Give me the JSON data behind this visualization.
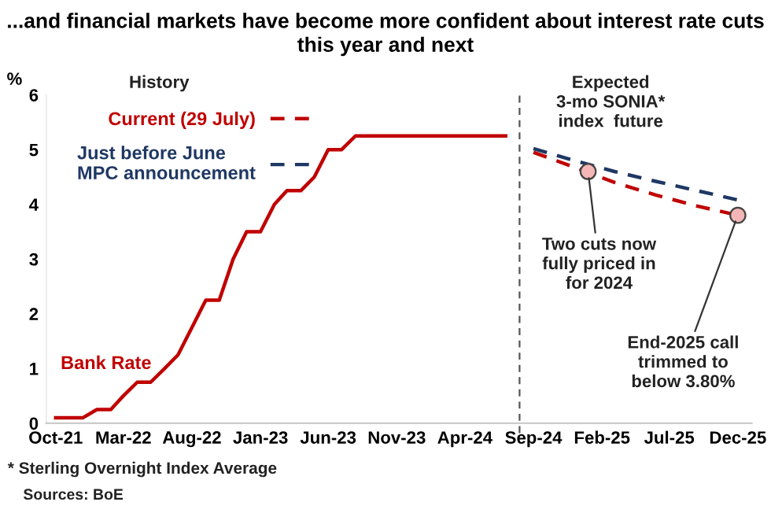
{
  "chart_data": {
    "type": "line",
    "title": "...and financial markets have become more confident about interest rate cuts this year and next",
    "ylabel": "%",
    "series": [
      {
        "name": "Bank Rate",
        "color": "#c00000",
        "line_style": "solid",
        "x": [
          "2021-10",
          "2021-11",
          "2021-12",
          "2022-01",
          "2022-02",
          "2022-03",
          "2022-04",
          "2022-05",
          "2022-06",
          "2022-07",
          "2022-08",
          "2022-09",
          "2022-10",
          "2022-11",
          "2022-12",
          "2023-01",
          "2023-02",
          "2023-03",
          "2023-04",
          "2023-05",
          "2023-06",
          "2023-07",
          "2023-08",
          "2024-07"
        ],
        "values": [
          0.1,
          0.1,
          0.1,
          0.25,
          0.25,
          0.5,
          0.75,
          0.75,
          1.0,
          1.25,
          1.75,
          2.25,
          2.25,
          3.0,
          3.5,
          3.5,
          4.0,
          4.25,
          4.25,
          4.5,
          5.0,
          5.0,
          5.25,
          5.25
        ]
      },
      {
        "name": "Current (29 July)",
        "color": "#c00000",
        "line_style": "dashed",
        "x": [
          "2024-09",
          "2024-12",
          "2025-03",
          "2025-06",
          "2025-09",
          "2025-12"
        ],
        "values": [
          4.95,
          4.68,
          4.4,
          4.17,
          3.97,
          3.8
        ]
      },
      {
        "name": "Just before June MPC announcement",
        "color": "#1f3864",
        "line_style": "dashed",
        "x": [
          "2024-09",
          "2024-12",
          "2025-03",
          "2025-06",
          "2025-09",
          "2025-12"
        ],
        "values": [
          5.02,
          4.8,
          4.6,
          4.42,
          4.25,
          4.08
        ]
      }
    ],
    "xlim": [
      "2021-09-10",
      "2026-01-01"
    ],
    "xticks": [
      {
        "value": "2021-10",
        "label": "Oct-21"
      },
      {
        "value": "2022-03",
        "label": "Mar-22"
      },
      {
        "value": "2022-08",
        "label": "Aug-22"
      },
      {
        "value": "2023-01",
        "label": "Jan-23"
      },
      {
        "value": "2023-06",
        "label": "Jun-23"
      },
      {
        "value": "2023-11",
        "label": "Nov-23"
      },
      {
        "value": "2024-04",
        "label": "Apr-24"
      },
      {
        "value": "2024-09",
        "label": "Sep-24"
      },
      {
        "value": "2025-02",
        "label": "Feb-25"
      },
      {
        "value": "2025-07",
        "label": "Jul-25"
      },
      {
        "value": "2025-12",
        "label": "Dec-25"
      }
    ],
    "ylim": [
      0,
      6
    ],
    "yticks": [
      0,
      1,
      2,
      3,
      4,
      5,
      6
    ],
    "ref_lines": [
      {
        "axis": "x",
        "value": "2024-08",
        "color": "#555555",
        "line_style": "dashed"
      }
    ],
    "legend": "top left",
    "grid": false,
    "annotations": [
      "History",
      "Expected\n3-mo SONIA*\nindex  future",
      {
        "text": "Two cuts now\nfully priced in\nfor 2024",
        "x": "2025-01",
        "y": 4.6
      },
      {
        "text": "End-2025 call\ntrimmed to\nbelow 3.80%",
        "x": "2025-12",
        "y": 3.8
      },
      "* Sterling Overnight Index Average",
      "Sources: BoE"
    ]
  }
}
